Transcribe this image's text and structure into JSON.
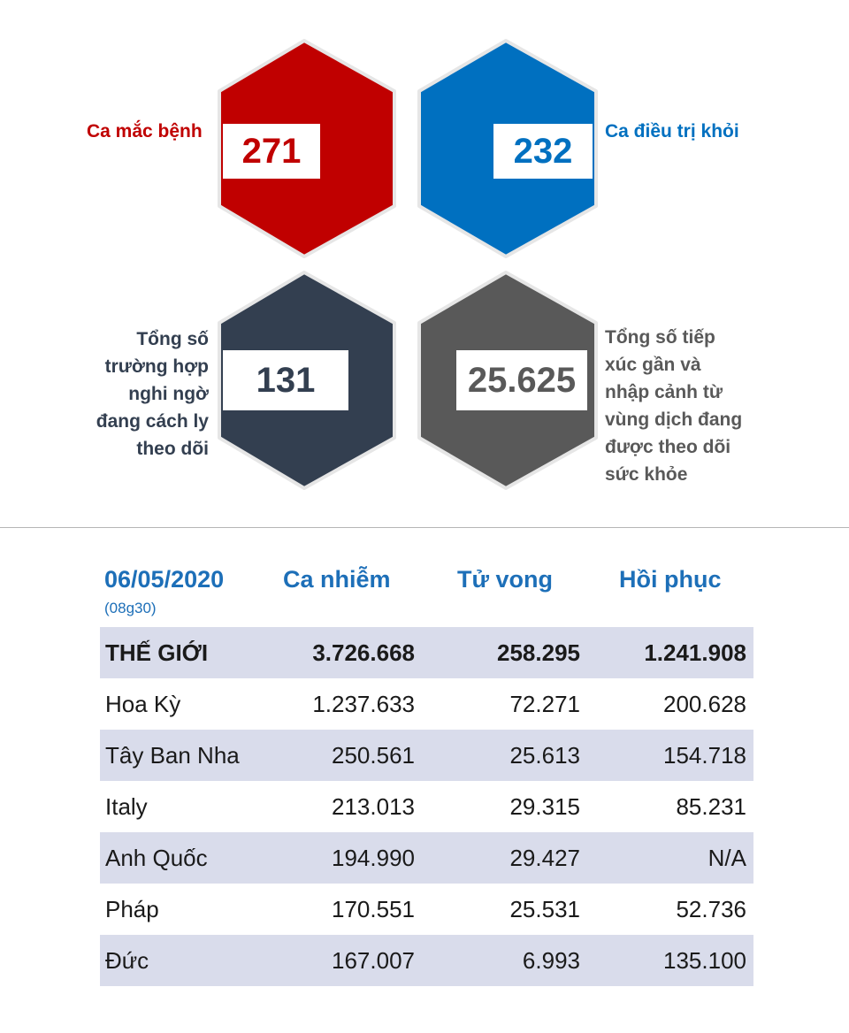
{
  "stats": {
    "infected": {
      "label": "Ca mắc bệnh",
      "value": "271",
      "color": "#c00000"
    },
    "recovered": {
      "label": "Ca điều trị khỏi",
      "value": "232",
      "color": "#0070c0"
    },
    "suspected": {
      "label_lines": [
        "Tổng số",
        "trường hợp",
        "nghi ngờ",
        "đang cách ly",
        "theo dõi"
      ],
      "value": "131",
      "color": "#333f50"
    },
    "monitored": {
      "label_lines": [
        "Tổng số tiếp",
        "xúc gần và",
        "nhập cảnh từ",
        "vùng dịch đang",
        "được theo dõi",
        "sức khỏe"
      ],
      "value": "25.625",
      "color": "#595959"
    }
  },
  "table": {
    "date": "06/05/2020",
    "time": "(08g30)",
    "headers": [
      "Ca nhiễm",
      "Tử vong",
      "Hồi phục"
    ],
    "header_color": "#1d6fb8",
    "row_shade": "#d9dceb",
    "rows": [
      {
        "name": "THẾ GIỚI",
        "cases": "3.726.668",
        "deaths": "258.295",
        "recovered": "1.241.908"
      },
      {
        "name": "Hoa Kỳ",
        "cases": "1.237.633",
        "deaths": "72.271",
        "recovered": "200.628"
      },
      {
        "name": "Tây Ban Nha",
        "cases": "250.561",
        "deaths": "25.613",
        "recovered": "154.718"
      },
      {
        "name": "Italy",
        "cases": "213.013",
        "deaths": "29.315",
        "recovered": "85.231"
      },
      {
        "name": "Anh Quốc",
        "cases": "194.990",
        "deaths": "29.427",
        "recovered": "N/A"
      },
      {
        "name": "Pháp",
        "cases": "170.551",
        "deaths": "25.531",
        "recovered": "52.736"
      },
      {
        "name": "Đức",
        "cases": "167.007",
        "deaths": "6.993",
        "recovered": "135.100"
      }
    ]
  }
}
